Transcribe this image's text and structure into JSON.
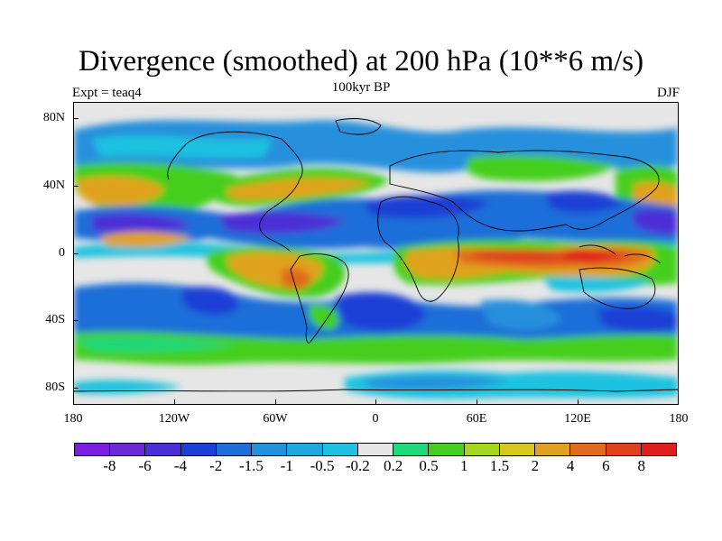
{
  "title": "Divergence (smoothed) at 200 hPa (10**6 m/s)",
  "left_label": "Expt = teaq4",
  "center_label": "100kyr BP",
  "right_label": "DJF",
  "y_ticks": [
    "80N",
    "40N",
    "0",
    "40S",
    "80S"
  ],
  "x_ticks": [
    "180",
    "120W",
    "60W",
    "0",
    "60E",
    "120E",
    "180"
  ],
  "colorbar": {
    "colors": [
      "#7a1ee0",
      "#6a2ad6",
      "#4b2ed6",
      "#1e3fd6",
      "#1f6ed8",
      "#2590dc",
      "#1ea8de",
      "#1ec2e0",
      "#e6e6e6",
      "#1ed87a",
      "#44cf1e",
      "#a4d61e",
      "#d8c81e",
      "#e0a21e",
      "#e06a1e",
      "#e0401e",
      "#e01e1e"
    ],
    "labels": [
      "-8",
      "-6",
      "-4",
      "-2",
      "-1.5",
      "-1",
      "-0.5",
      "-0.2",
      "0.2",
      "0.5",
      "1",
      "1.5",
      "2",
      "4",
      "6",
      "8"
    ]
  },
  "chart_data": {
    "type": "heatmap",
    "title": "Divergence (smoothed) at 200 hPa (10**6 m/s)",
    "subtitle": "100kyr BP",
    "xlabel": "",
    "ylabel": "",
    "xlim": [
      -180,
      180
    ],
    "ylim": [
      -90,
      90
    ],
    "levels": [
      -8,
      -6,
      -4,
      -2,
      -1.5,
      -1,
      -0.5,
      -0.2,
      0.2,
      0.5,
      1,
      1.5,
      2,
      4,
      6,
      8
    ],
    "regions": [
      {
        "name": "",
        "lon": 118,
        "lat": -5,
        "value": 8
      },
      {
        "name": "",
        "lon": 70,
        "lat": -5,
        "value": 6
      },
      {
        "name": "",
        "lon": 150,
        "lat": 5,
        "value": 4
      },
      {
        "name": "",
        "lon": 25,
        "lat": -10,
        "value": 4
      },
      {
        "name": "",
        "lon": -60,
        "lat": -10,
        "value": 2
      },
      {
        "name": "",
        "lon": -150,
        "lat": 35,
        "value": 2
      },
      {
        "name": "",
        "lon": -40,
        "lat": 40,
        "value": 2
      },
      {
        "name": "",
        "lon": 170,
        "lat": 40,
        "value": 2
      },
      {
        "name": "",
        "lon": 50,
        "lat": 50,
        "value": 1
      },
      {
        "name": "",
        "lon": -130,
        "lat": 15,
        "value": -4
      },
      {
        "name": "",
        "lon": -90,
        "lat": 15,
        "value": -4
      },
      {
        "name": "",
        "lon": 20,
        "lat": 25,
        "value": -4
      },
      {
        "name": "",
        "lon": 110,
        "lat": 25,
        "value": -4
      },
      {
        "name": "",
        "lon": 20,
        "lat": -35,
        "value": -2
      },
      {
        "name": "",
        "lon": -120,
        "lat": -25,
        "value": -2
      },
      {
        "name": "",
        "lon": 100,
        "lat": -35,
        "value": -2
      }
    ]
  }
}
